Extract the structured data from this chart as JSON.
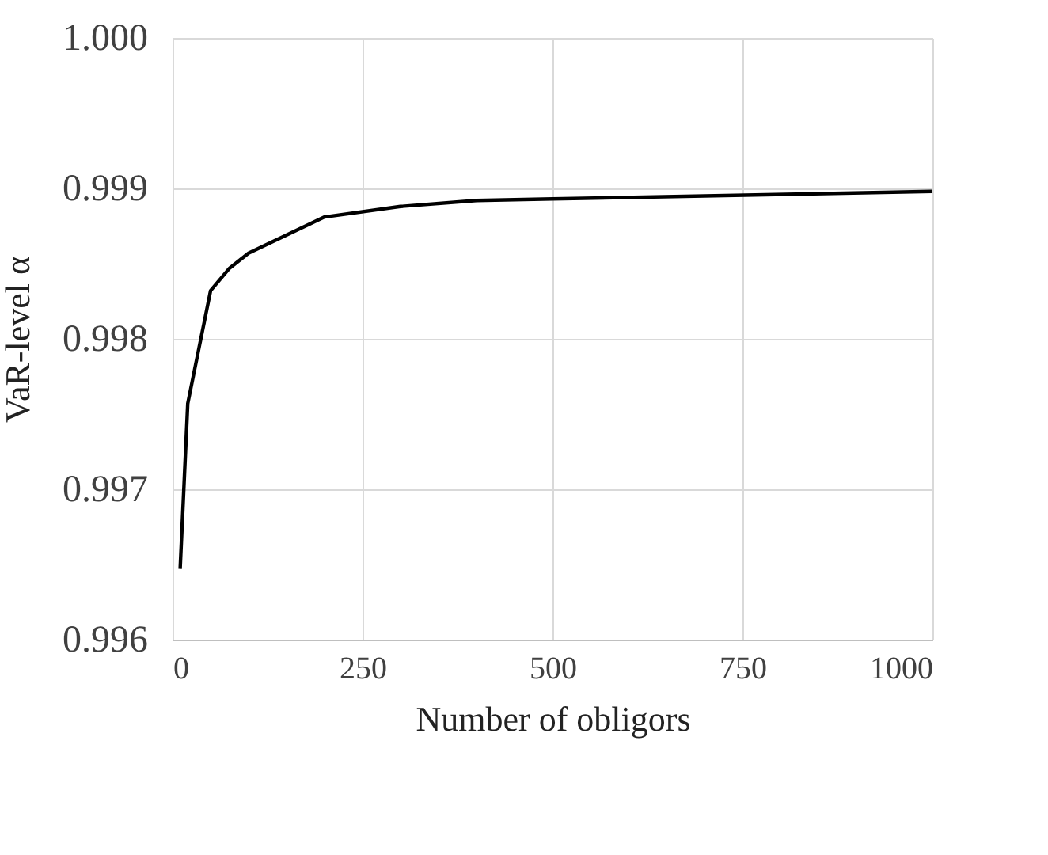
{
  "chart_data": {
    "type": "line",
    "xlabel": "Number of obligors",
    "ylabel": "VaR-level α",
    "x": [
      10,
      20,
      50,
      75,
      100,
      200,
      300,
      400,
      500,
      1000
    ],
    "series": [
      {
        "color": "#000000",
        "values": [
          0.99647,
          0.99757,
          0.99832,
          0.99847,
          0.99857,
          0.99881,
          0.99888,
          0.99892,
          0.99893,
          0.99898
        ]
      }
    ],
    "xlim": [
      0,
      1000
    ],
    "xticks": [
      0,
      250,
      500,
      750,
      1000
    ],
    "ylim": [
      0.996,
      1.0
    ],
    "yticks": [
      {
        "value": 0.996,
        "label": "0.996"
      },
      {
        "value": 0.997,
        "label": "0.997"
      },
      {
        "value": 0.998,
        "label": "0.998"
      },
      {
        "value": 0.999,
        "label": "0.999"
      },
      {
        "value": 1.0,
        "label": "1.000"
      }
    ],
    "grid": true,
    "marker": "none",
    "line_style": "solid",
    "legend": false
  }
}
